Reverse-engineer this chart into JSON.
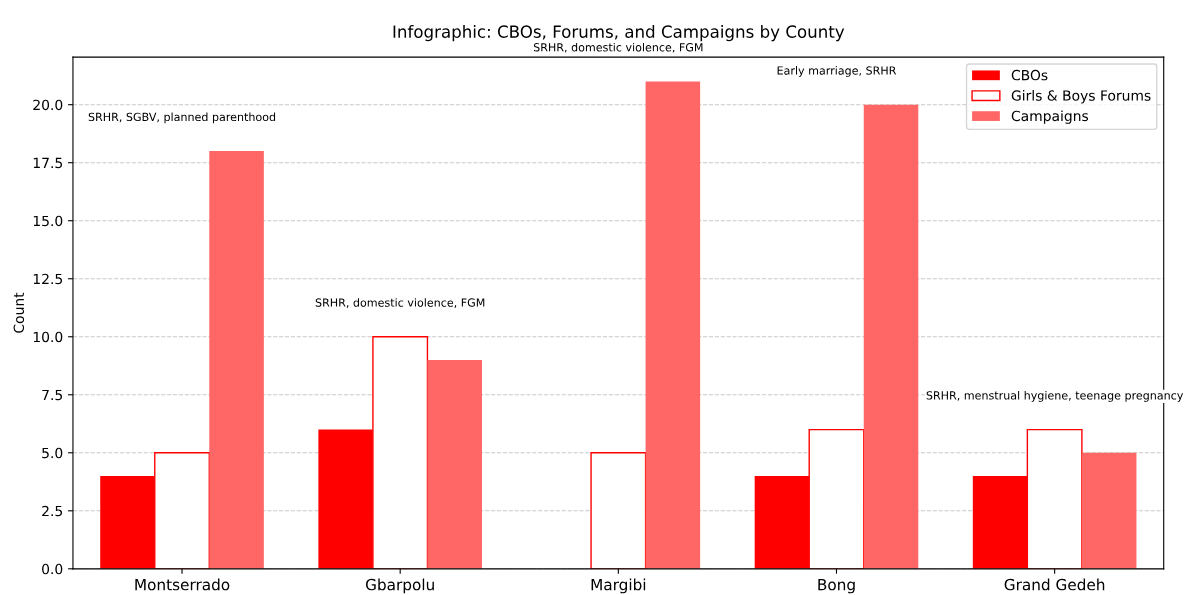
{
  "chart_data": {
    "type": "bar",
    "title": "Infographic: CBOs, Forums, and Campaigns by County",
    "ylabel": "Count",
    "categories": [
      "Montserrado",
      "Gbarpolu",
      "Margibi",
      "Bong",
      "Grand Gedeh"
    ],
    "series": [
      {
        "name": "CBOs",
        "color": "#ff0000",
        "values": [
          4,
          6,
          0,
          4,
          4
        ]
      },
      {
        "name": "Girls & Boys Forums",
        "color": "#ffffff",
        "values": [
          5,
          10,
          5,
          6,
          6
        ]
      },
      {
        "name": "Campaigns",
        "color": "#ff6666",
        "values": [
          18,
          9,
          21,
          20,
          5
        ]
      }
    ],
    "ylim": [
      0,
      22.05
    ],
    "yticks": [
      {
        "value": 0,
        "label": "0.0"
      },
      2.5,
      {
        "value": 5,
        "label": "5.0"
      },
      7.5,
      {
        "value": 10,
        "label": "10.0"
      },
      12.5,
      {
        "value": 15,
        "label": "15.0"
      },
      17.5,
      {
        "value": 20,
        "label": "20.0"
      }
    ],
    "grid": "y",
    "legend": "top right",
    "annotations": [
      "SRHR, SGBV, planned parenthood",
      "SRHR, domestic violence, FGM",
      "SRHR, domestic violence, FGM",
      "Early marriage, SRHR",
      "SRHR, menstrual hygiene, teenage pregnancy"
    ]
  }
}
